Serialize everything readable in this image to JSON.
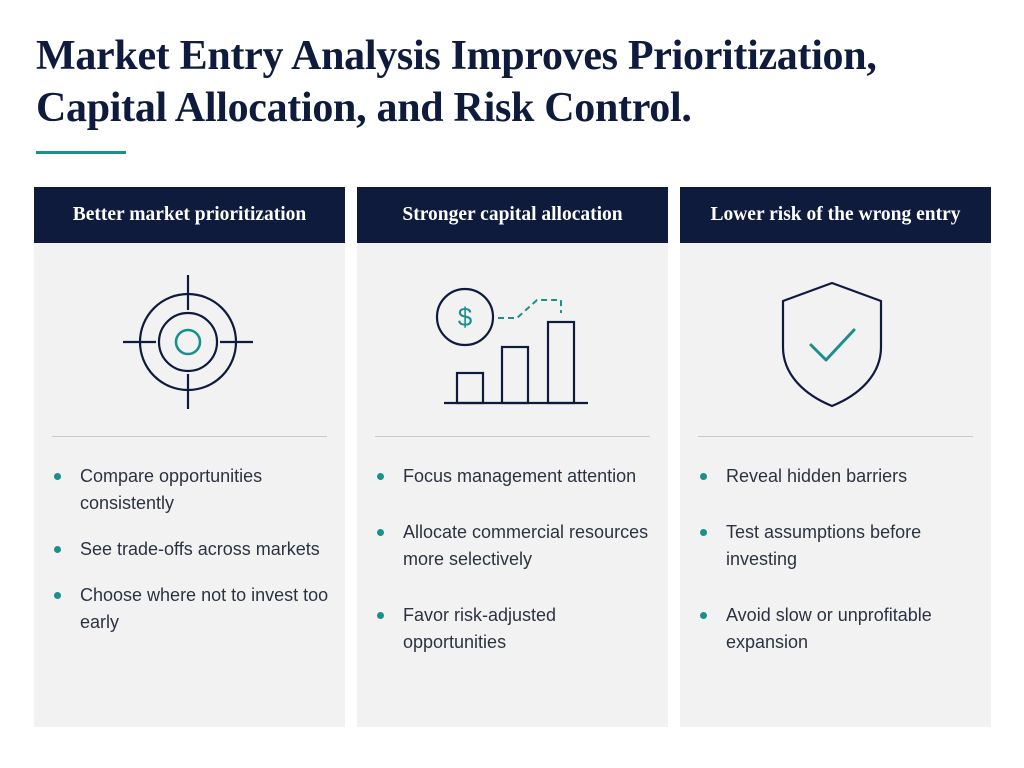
{
  "title": "Market Entry Analysis Improves Prioritization, Capital Allocation, and Risk Control.",
  "colors": {
    "navy": "#0f1b3d",
    "teal": "#1b8f8c",
    "card_background": "#f2f2f3"
  },
  "cards": [
    {
      "heading": "Better market prioritization",
      "icon": "target-crosshair-icon",
      "bullets": [
        "Compare opportunities consistently",
        "See trade-offs across markets",
        "Choose where not to invest too early"
      ]
    },
    {
      "heading": "Stronger capital allocation",
      "icon": "dollar-bar-chart-icon",
      "icon_symbol": "$",
      "bullets": [
        "Focus management attention",
        "Allocate commercial resources more selectively",
        "Favor risk-adjusted opportunities"
      ]
    },
    {
      "heading": "Lower risk of the wrong entry",
      "icon": "shield-check-icon",
      "bullets": [
        "Reveal hidden barriers",
        "Test assumptions before investing",
        "Avoid slow or unprofitable expansion"
      ]
    }
  ]
}
